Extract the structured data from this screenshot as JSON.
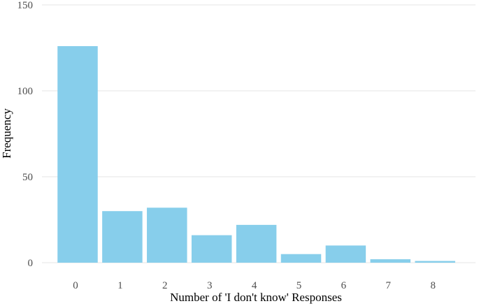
{
  "chart_data": {
    "type": "bar",
    "title": "",
    "xlabel": "Number of 'I don't know' Responses",
    "ylabel": "Frequency",
    "categories": [
      "0",
      "1",
      "2",
      "3",
      "4",
      "5",
      "6",
      "7",
      "8"
    ],
    "values": [
      126,
      30,
      32,
      16,
      22,
      5,
      10,
      2,
      1
    ],
    "ylim": [
      0,
      150
    ],
    "yticks": [
      "0",
      "50",
      "100",
      "150"
    ],
    "grid": true,
    "legend": "none",
    "bar_color": "#87CEEB"
  }
}
